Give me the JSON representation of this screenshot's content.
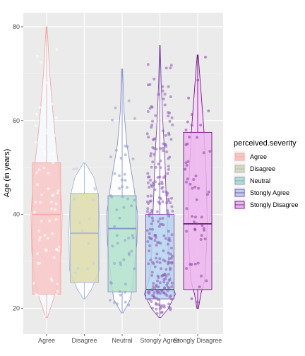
{
  "chart_data": {
    "type": "box",
    "overlays": [
      "violin",
      "jitter"
    ],
    "categories": [
      "Agree",
      "Disagree",
      "Neutral",
      "Stongly Agree",
      "Stongly Disagree"
    ],
    "xlabel": "",
    "ylabel": "Age (in years)",
    "ylim": [
      14.5,
      83
    ],
    "yticks": [
      20,
      40,
      60,
      80
    ],
    "grid": true,
    "legend": {
      "title": "perceived.severity",
      "position": "right",
      "entries": [
        "Agree",
        "Disagree",
        "Neutral",
        "Stongly Agree",
        "Stongly Disagree"
      ]
    },
    "boxes": [
      {
        "name": "Agree",
        "min": 18,
        "q1": 23,
        "median": 40,
        "q3": 51,
        "max": 80
      },
      {
        "name": "Disagree",
        "min": 22,
        "q1": 25.5,
        "median": 36,
        "q3": 44.5,
        "max": 51
      },
      {
        "name": "Neutral",
        "min": 19,
        "q1": 23.5,
        "median": 37,
        "q3": 44,
        "max": 71
      },
      {
        "name": "Stongly Agree",
        "min": 18,
        "q1": 22,
        "median": 24,
        "q3": 40,
        "max": 76
      },
      {
        "name": "Stongly Disagree",
        "min": 20,
        "q1": 24,
        "median": 38,
        "q3": 57.5,
        "max": 74
      }
    ],
    "colors": {
      "Agree": {
        "fill": "#f8c6c4",
        "line": "#f2a9a6",
        "point": "#ffffff",
        "violin": "#f4fbff"
      },
      "Disagree": {
        "fill": "#dcdaaa",
        "line": "#a5b8d6",
        "point": "#bfcde5",
        "violin": "#ffffff"
      },
      "Neutral": {
        "fill": "#b2e0cc",
        "line": "#8a94c6",
        "point": "#8c9bc8",
        "violin": "#ffffff"
      },
      "Stongly Agree": {
        "fill": "#b5d3ee",
        "line": "#7e46a6",
        "point": "#8e5ab5",
        "violin": "#ffffff"
      },
      "Stongly Disagree": {
        "fill": "#edb7ef",
        "line": "#6f1780",
        "point": "#8b3f9e",
        "violin": "#f6d6f8"
      }
    }
  }
}
